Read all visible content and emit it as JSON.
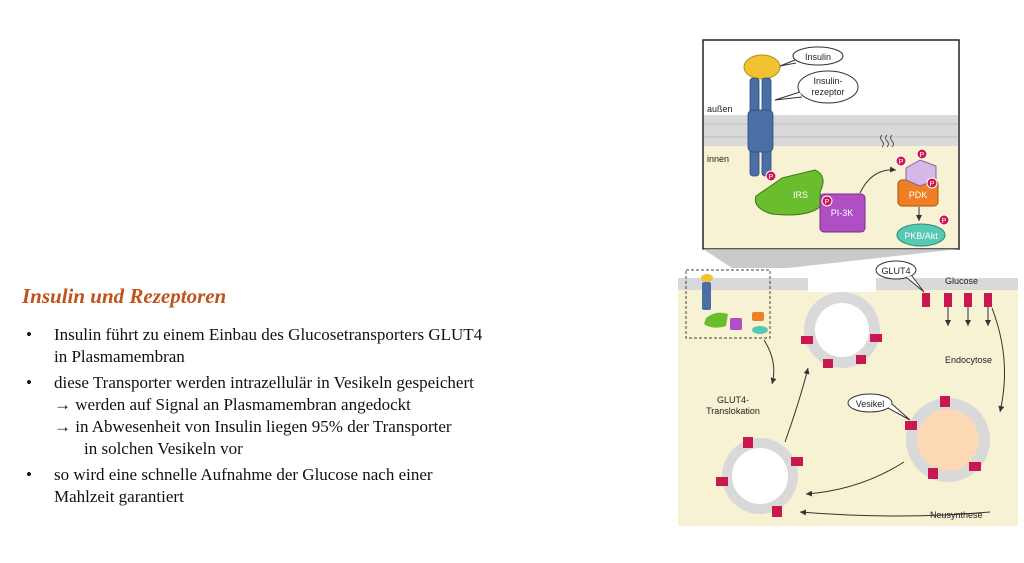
{
  "slide": {
    "heading": "Insulin und Rezeptoren",
    "bullets": [
      {
        "lines": [
          "Insulin führt zu einem Einbau des Glucosetransporters GLUT4",
          "in Plasmamembran"
        ]
      },
      {
        "lines": [
          "diese Transporter werden intrazellulär in Vesikeln gespeichert"
        ],
        "sub": [
          "→ werden auf Signal an Plasmamembran angedockt",
          "→ in Abwesenheit von Insulin liegen 95% der Transporter"
        ],
        "indent": "in solchen Vesikeln vor"
      },
      {
        "lines": [
          "so wird eine schnelle Aufnahme der Glucose nach einer",
          "Mahlzeit garantiert"
        ]
      }
    ]
  },
  "diagram": {
    "labels": {
      "insulin": "Insulin",
      "receptor_1": "Insulin-",
      "receptor_2": "rezeptor",
      "outside": "außen",
      "inside": "innen",
      "irs": "IRS",
      "pi3k": "PI-3K",
      "pdk": "PDK",
      "pkb": "PKB/Akt",
      "phospho": "P",
      "glut4": "GLUT4",
      "glucose": "Glucose",
      "endocytosis": "Endocytose",
      "vesicle": "Vesikel",
      "translocation_1": "GLUT4-",
      "translocation_2": "Translokation",
      "neusynthese": "Neusynthese"
    },
    "colors": {
      "membrane": "#d9d9d9",
      "cytoplasm": "#f7f2d3",
      "insulin": "#f1c232",
      "receptor": "#4a6fa5",
      "irs": "#6abd2c",
      "pi3k": "#b04fc4",
      "pdk": "#ee7f24",
      "pkb": "#58c8b4",
      "glut4": "#c8184f",
      "vesicle_core": "#fbd9b5"
    }
  }
}
